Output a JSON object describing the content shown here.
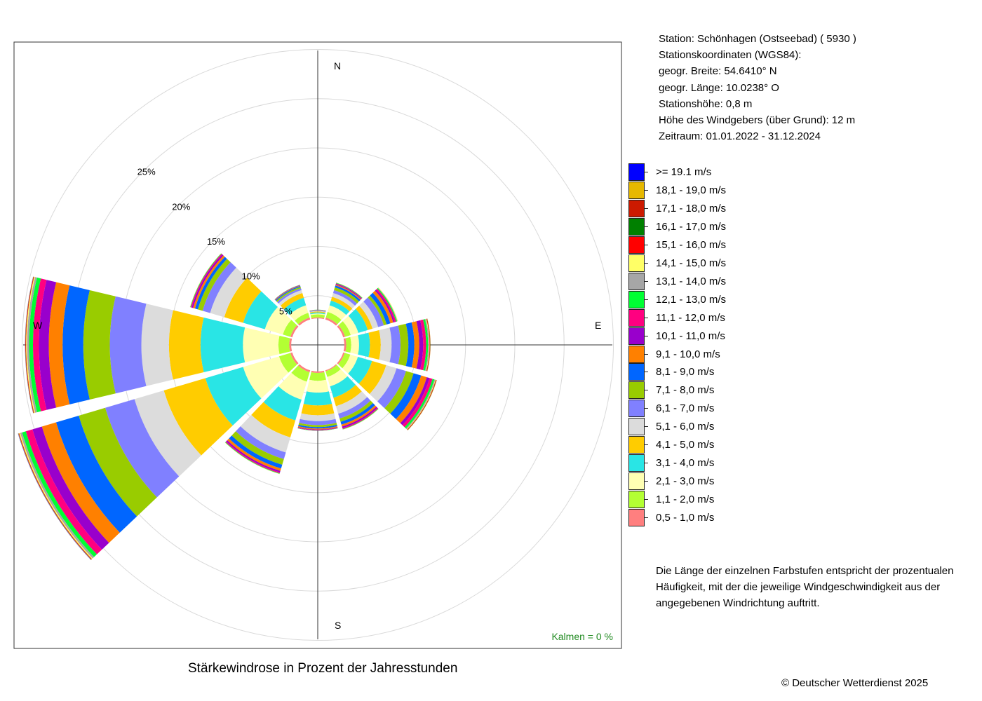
{
  "station": {
    "line1": "Station:  Schönhagen (Ostseebad)  ( 5930 )",
    "line2": "Stationskoordinaten (WGS84):",
    "line3": "geogr. Breite: 54.6410° N",
    "line4": "geogr. Länge: 10.0238° O",
    "line5": "Stationshöhe: 0,8 m",
    "line6": "Höhe des Windgebers (über Grund): 12 m",
    "line7": "Zeitraum: 01.01.2022 - 31.12.2024"
  },
  "note": "Die Länge der einzelnen Farbstufen entspricht der prozentualen Häufigkeit, mit der die jeweilige Windgeschwindigkeit aus der angegebenen Windrichtung auftritt.",
  "copyright": "© Deutscher Wetterdienst  2025",
  "chart_data": {
    "type": "windrose",
    "title": "Stärkewindrose in Prozent der Jahresstunden",
    "compass": {
      "n": "N",
      "e": "E",
      "s": "S",
      "w": "W"
    },
    "ring_labels": [
      "5%",
      "10%",
      "15%",
      "20%",
      "25%"
    ],
    "ring_values": [
      5,
      10,
      15,
      20,
      25,
      30
    ],
    "calm_label": "Kalmen  =  0 %",
    "inner_radius_percent": 0.55,
    "speed_classes": [
      {
        "label": "0,5 - 1,0 m/s",
        "color": "#FF7F7F"
      },
      {
        "label": "1,1 - 2,0 m/s",
        "color": "#B3FF33"
      },
      {
        "label": "2,1 - 3,0 m/s",
        "color": "#FFFFB3"
      },
      {
        "label": "3,1 - 4,0 m/s",
        "color": "#29E5E5"
      },
      {
        "label": "4,1 - 5,0 m/s",
        "color": "#FFCC00"
      },
      {
        "label": "5,1 - 6,0 m/s",
        "color": "#DCDCDC"
      },
      {
        "label": "6,1 - 7,0 m/s",
        "color": "#8080FF"
      },
      {
        "label": "7,1 - 8,0 m/s",
        "color": "#99CC00"
      },
      {
        "label": "8,1 - 9,0 m/s",
        "color": "#0066FF"
      },
      {
        "label": "9,1 - 10,0 m/s",
        "color": "#FF8000"
      },
      {
        "label": "10,1 - 11,0 m/s",
        "color": "#9900CC"
      },
      {
        "label": "11,1 - 12,0 m/s",
        "color": "#FF0080"
      },
      {
        "label": "12,1 - 13,0 m/s",
        "color": "#00FF33"
      },
      {
        "label": "13,1 - 14,0 m/s",
        "color": "#A6A6A6"
      },
      {
        "label": "14,1 - 15,0 m/s",
        "color": "#FFFF66"
      },
      {
        "label": "15,1 - 16,0 m/s",
        "color": "#FF0000"
      },
      {
        "label": "16,1 - 17,0 m/s",
        "color": "#008000"
      },
      {
        "label": "17,1 - 18,0 m/s",
        "color": "#CC1A00"
      },
      {
        "label": "18,1 - 19,0 m/s",
        "color": "#E6B800"
      },
      {
        "label": ">= 19.1 m/s",
        "color": "#0000FF"
      }
    ],
    "sectors": [
      {
        "direction_deg": 0,
        "values": [
          0.1,
          0.3,
          0.1,
          0.1,
          0.1,
          0.05,
          0.05,
          0.02,
          0.02,
          0.02,
          0.01,
          0.01,
          0.01,
          0,
          0,
          0,
          0,
          0,
          0,
          0
        ]
      },
      {
        "direction_deg": 30,
        "values": [
          0.2,
          0.6,
          0.7,
          0.5,
          0.4,
          0.4,
          0.3,
          0.3,
          0.2,
          0.1,
          0.08,
          0.05,
          0.05,
          0.02,
          0.02,
          0,
          0,
          0,
          0,
          0
        ]
      },
      {
        "direction_deg": 60,
        "values": [
          0.2,
          0.6,
          0.8,
          1.0,
          0.5,
          0.6,
          0.6,
          0.3,
          0.4,
          0.3,
          0.15,
          0.15,
          0.1,
          0.05,
          0.05,
          0,
          0,
          0,
          0,
          0
        ]
      },
      {
        "direction_deg": 90,
        "values": [
          0.2,
          0.5,
          0.8,
          1.1,
          1.1,
          1.1,
          0.9,
          0.8,
          0.6,
          0.5,
          0.4,
          0.3,
          0.2,
          0.1,
          0.05,
          0.05,
          0.02,
          0.02,
          0.01,
          0
        ]
      },
      {
        "direction_deg": 120,
        "values": [
          0.15,
          0.6,
          0.8,
          1.5,
          1.5,
          1.1,
          1.0,
          0.8,
          0.8,
          0.6,
          0.3,
          0.3,
          0.2,
          0.1,
          0.05,
          0.05,
          0.02,
          0.02,
          0.02,
          0
        ]
      },
      {
        "direction_deg": 150,
        "values": [
          0.1,
          0.6,
          1.0,
          1.2,
          0.9,
          0.8,
          0.5,
          0.35,
          0.3,
          0.2,
          0.15,
          0.1,
          0.05,
          0.02,
          0.02,
          0,
          0,
          0,
          0,
          0
        ]
      },
      {
        "direction_deg": 180,
        "values": [
          0.15,
          0.8,
          1.2,
          1.3,
          1.0,
          0.6,
          0.4,
          0.2,
          0.15,
          0.1,
          0.05,
          0.05,
          0.02,
          0,
          0,
          0,
          0,
          0,
          0,
          0
        ]
      },
      {
        "direction_deg": 210,
        "values": [
          0.2,
          1.0,
          1.9,
          2.2,
          1.8,
          1.6,
          0.7,
          0.6,
          0.4,
          0.25,
          0.15,
          0.1,
          0.05,
          0.02,
          0.02,
          0,
          0,
          0,
          0,
          0
        ]
      },
      {
        "direction_deg": 240,
        "values": [
          0.2,
          1.2,
          3.8,
          4.0,
          4.4,
          3.1,
          3.1,
          2.8,
          2.4,
          1.5,
          1.0,
          0.7,
          0.4,
          0.2,
          0.1,
          0.05,
          0.02,
          0.02,
          0.02,
          0.02
        ]
      },
      {
        "direction_deg": 270,
        "values": [
          0.2,
          1.1,
          3.6,
          4.3,
          3.2,
          2.8,
          3.2,
          2.7,
          2.1,
          1.4,
          1.0,
          0.6,
          0.4,
          0.2,
          0.1,
          0.05,
          0.02,
          0.02,
          0.01,
          0.01
        ]
      },
      {
        "direction_deg": 300,
        "values": [
          0.2,
          0.8,
          1.9,
          2.3,
          2.0,
          1.5,
          0.8,
          0.5,
          0.3,
          0.2,
          0.15,
          0.1,
          0.05,
          0.02,
          0.02,
          0,
          0,
          0,
          0,
          0
        ]
      },
      {
        "direction_deg": 330,
        "values": [
          0.2,
          0.5,
          0.8,
          0.8,
          0.5,
          0.3,
          0.2,
          0.15,
          0.1,
          0.05,
          0.03,
          0.02,
          0.02,
          0,
          0,
          0,
          0,
          0,
          0,
          0
        ]
      }
    ]
  }
}
